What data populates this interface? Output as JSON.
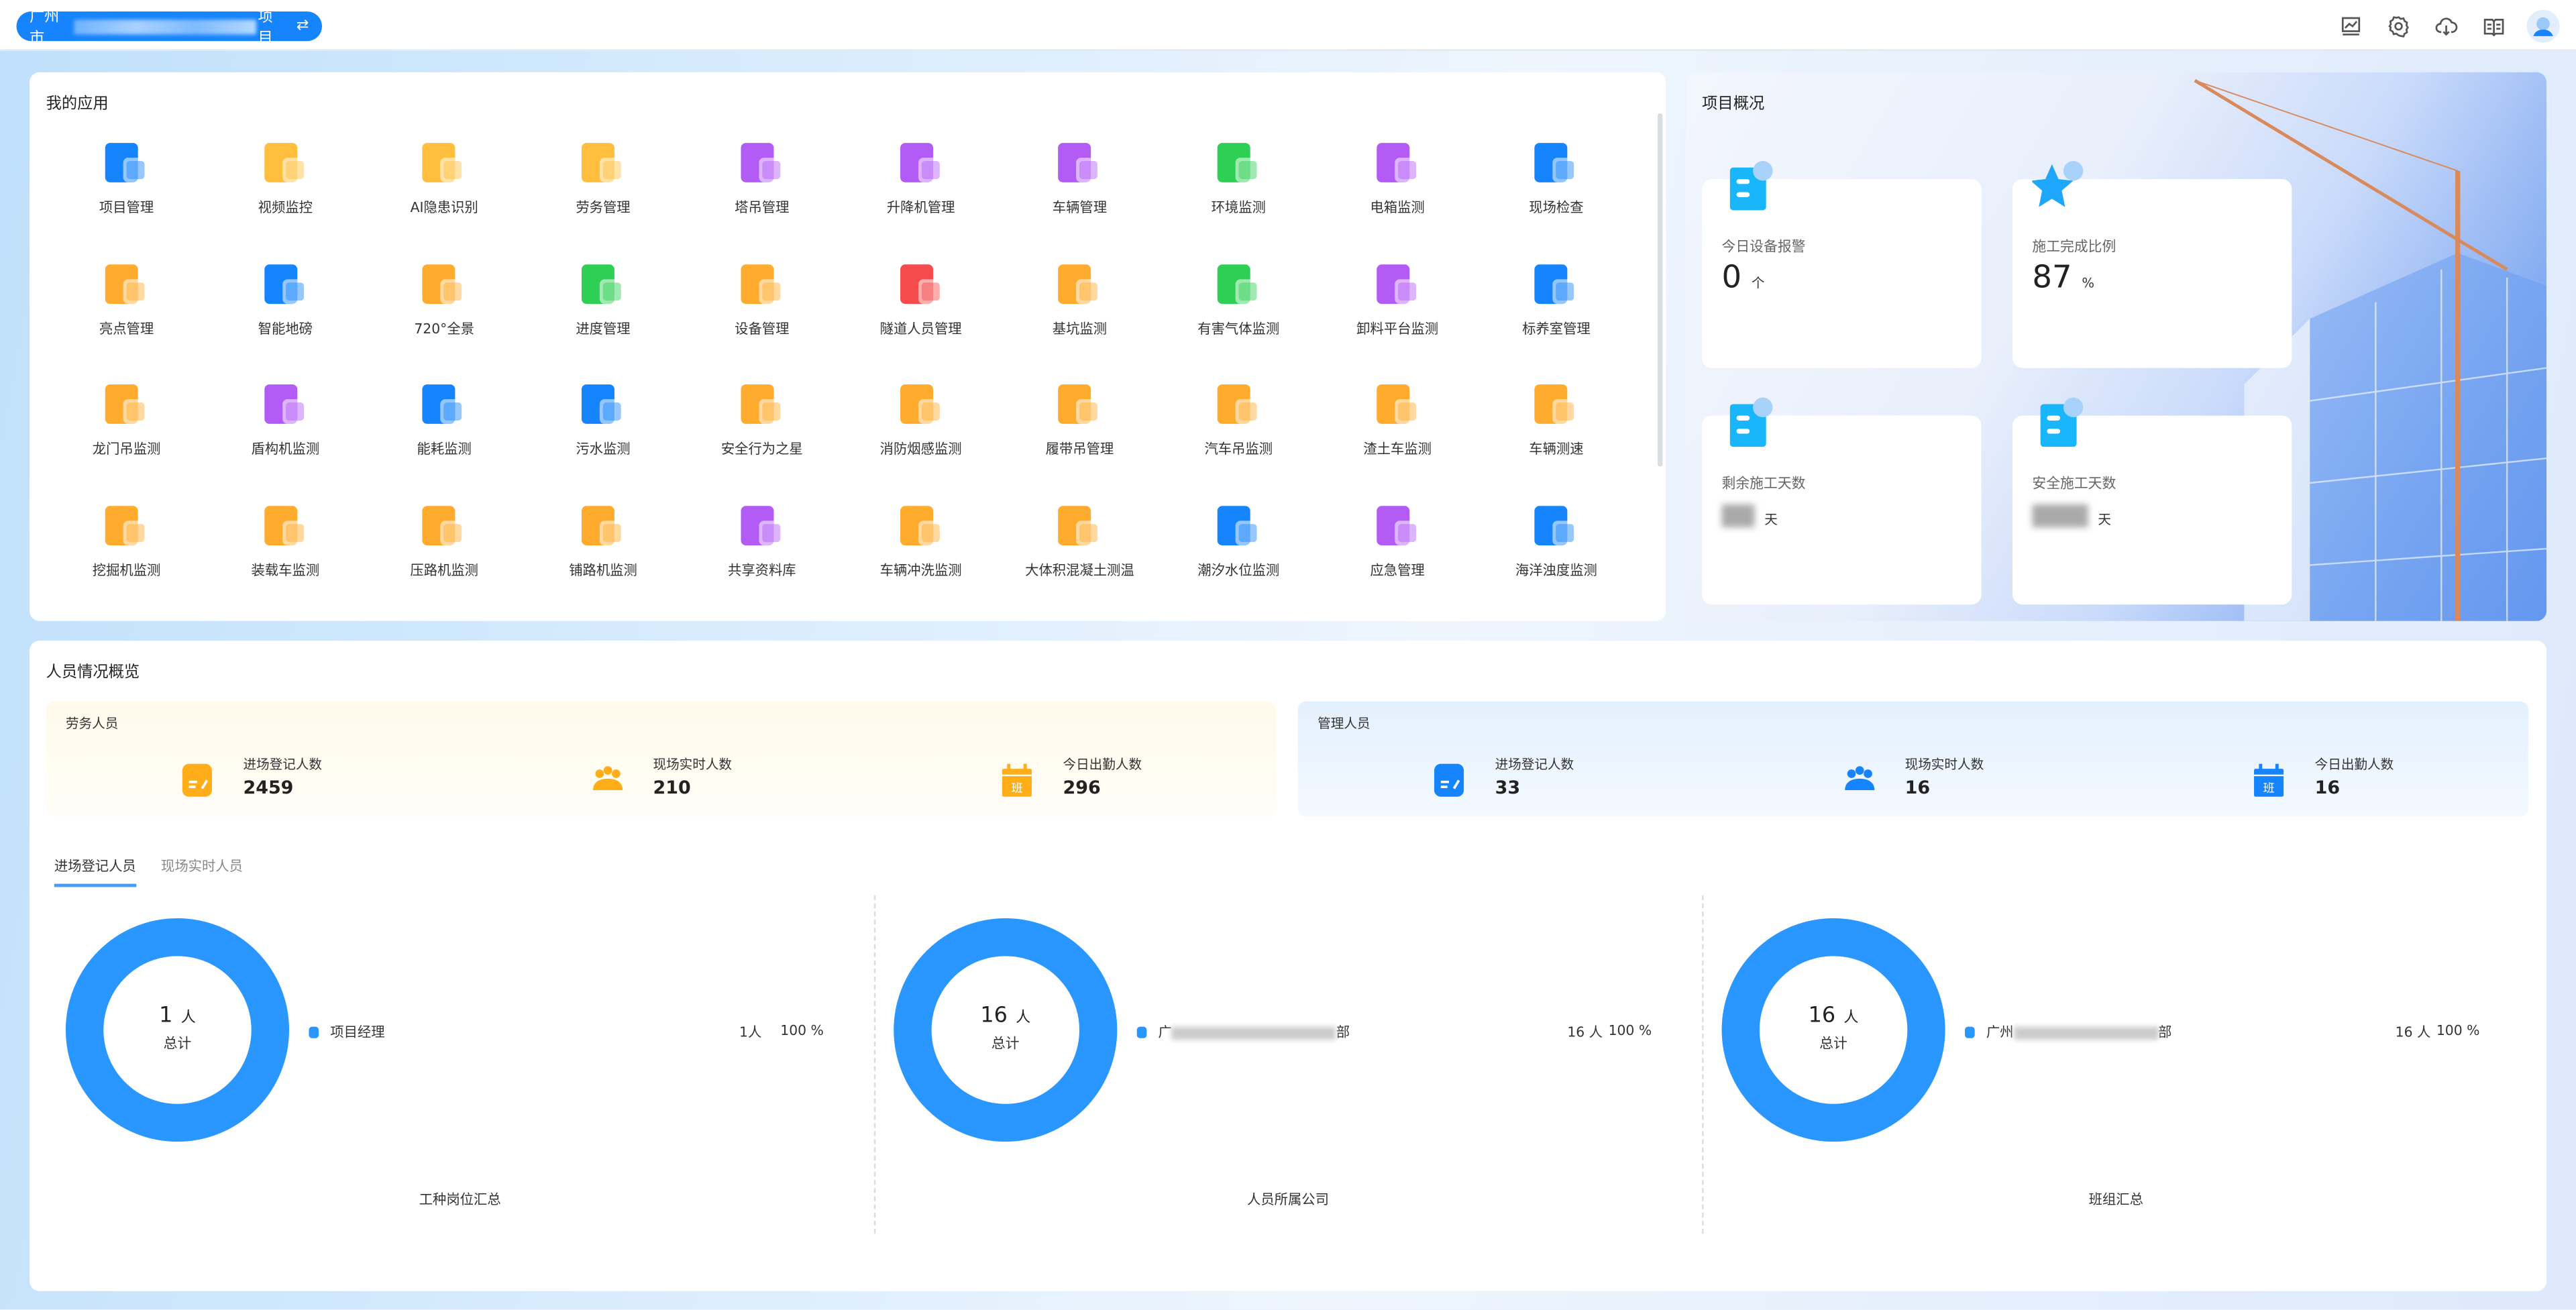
{
  "header": {
    "project_prefix": "广州市",
    "project_suffix": "项目",
    "switch_icon": "swap-icon",
    "icons": [
      "monitor-chart-icon",
      "gear-icon",
      "cloud-download-icon",
      "book-icon",
      "avatar-icon"
    ]
  },
  "apps": {
    "title": "我的应用",
    "items": [
      {
        "label": "项目管理",
        "color": "#1684fc"
      },
      {
        "label": "视频监控",
        "color": "#ffbe3d"
      },
      {
        "label": "AI隐患识别",
        "color": "#ffbe3d"
      },
      {
        "label": "劳务管理",
        "color": "#ffbe3d"
      },
      {
        "label": "塔吊管理",
        "color": "#b25cf5"
      },
      {
        "label": "升降机管理",
        "color": "#b25cf5"
      },
      {
        "label": "车辆管理",
        "color": "#b25cf5"
      },
      {
        "label": "环境监测",
        "color": "#2fcf55"
      },
      {
        "label": "电箱监测",
        "color": "#b25cf5"
      },
      {
        "label": "现场检查",
        "color": "#1684fc"
      },
      {
        "label": "亮点管理",
        "color": "#ffab2d"
      },
      {
        "label": "智能地磅",
        "color": "#1684fc"
      },
      {
        "label": "720°全景",
        "color": "#ffab2d"
      },
      {
        "label": "进度管理",
        "color": "#2fcf55"
      },
      {
        "label": "设备管理",
        "color": "#ffab2d"
      },
      {
        "label": "隧道人员管理",
        "color": "#f44c4c"
      },
      {
        "label": "基坑监测",
        "color": "#ffab2d"
      },
      {
        "label": "有害气体监测",
        "color": "#2fcf55"
      },
      {
        "label": "卸料平台监测",
        "color": "#b25cf5"
      },
      {
        "label": "标养室管理",
        "color": "#1684fc"
      },
      {
        "label": "龙门吊监测",
        "color": "#ffab2d"
      },
      {
        "label": "盾构机监测",
        "color": "#b25cf5"
      },
      {
        "label": "能耗监测",
        "color": "#1684fc"
      },
      {
        "label": "污水监测",
        "color": "#1684fc"
      },
      {
        "label": "安全行为之星",
        "color": "#ffab2d"
      },
      {
        "label": "消防烟感监测",
        "color": "#ffab2d"
      },
      {
        "label": "履带吊管理",
        "color": "#ffab2d"
      },
      {
        "label": "汽车吊监测",
        "color": "#ffab2d"
      },
      {
        "label": "渣土车监测",
        "color": "#ffab2d"
      },
      {
        "label": "车辆测速",
        "color": "#ffab2d"
      },
      {
        "label": "挖掘机监测",
        "color": "#ffab2d"
      },
      {
        "label": "装载车监测",
        "color": "#ffab2d"
      },
      {
        "label": "压路机监测",
        "color": "#ffab2d"
      },
      {
        "label": "铺路机监测",
        "color": "#ffab2d"
      },
      {
        "label": "共享资料库",
        "color": "#b25cf5"
      },
      {
        "label": "车辆冲洗监测",
        "color": "#ffab2d"
      },
      {
        "label": "大体积混凝土测温",
        "color": "#ffab2d"
      },
      {
        "label": "潮汐水位监测",
        "color": "#1684fc"
      },
      {
        "label": "应急管理",
        "color": "#b25cf5"
      },
      {
        "label": "海洋浊度监测",
        "color": "#1684fc"
      }
    ]
  },
  "overview": {
    "title": "项目概况",
    "cards": [
      {
        "label": "今日设备报警",
        "value": "0",
        "unit": "个",
        "icon": "device-alert-icon"
      },
      {
        "label": "施工完成比例",
        "value": "87",
        "unit": "%",
        "icon": "star-check-icon"
      },
      {
        "label": "剩余施工天数",
        "value": null,
        "unit": "天",
        "icon": "calendar-hourglass-icon"
      },
      {
        "label": "安全施工天数",
        "value": null,
        "unit": "天",
        "icon": "calendar-clock-icon"
      }
    ]
  },
  "people": {
    "title": "人员情况概览",
    "labor": {
      "title": "劳务人员",
      "stats": [
        {
          "label": "进场登记人数",
          "value": "2459",
          "icon": "register-icon"
        },
        {
          "label": "现场实时人数",
          "value": "210",
          "icon": "group-icon"
        },
        {
          "label": "今日出勤人数",
          "value": "296",
          "icon": "calendar-shift-icon",
          "badge": "班"
        }
      ]
    },
    "mgmt": {
      "title": "管理人员",
      "stats": [
        {
          "label": "进场登记人数",
          "value": "33",
          "icon": "register-icon"
        },
        {
          "label": "现场实时人数",
          "value": "16",
          "icon": "group-icon"
        },
        {
          "label": "今日出勤人数",
          "value": "16",
          "icon": "calendar-shift-icon",
          "badge": "班"
        }
      ]
    },
    "tabs": [
      {
        "label": "进场登记人员",
        "active": true
      },
      {
        "label": "现场实时人员",
        "active": false
      }
    ],
    "accent": "#2997ff"
  },
  "chart_data": [
    {
      "type": "pie",
      "title": "工种岗位汇总",
      "total": "1",
      "unit": "人",
      "center_label": "总计",
      "items": [
        {
          "name": "项目经理",
          "count": "1人",
          "percent": "100 %",
          "value": 1
        }
      ]
    },
    {
      "type": "pie",
      "title": "人员所属公司",
      "total": "16",
      "unit": "人",
      "center_label": "总计",
      "items": [
        {
          "name_prefix": "广",
          "name_suffix": "部",
          "count": "16 人",
          "percent": "100 %",
          "value": 16
        }
      ]
    },
    {
      "type": "pie",
      "title": "班组汇总",
      "total": "16",
      "unit": "人",
      "center_label": "总计",
      "items": [
        {
          "name_prefix": "广州",
          "name_suffix": "部",
          "count": "16 人",
          "percent": "100 %",
          "value": 16
        }
      ]
    }
  ]
}
